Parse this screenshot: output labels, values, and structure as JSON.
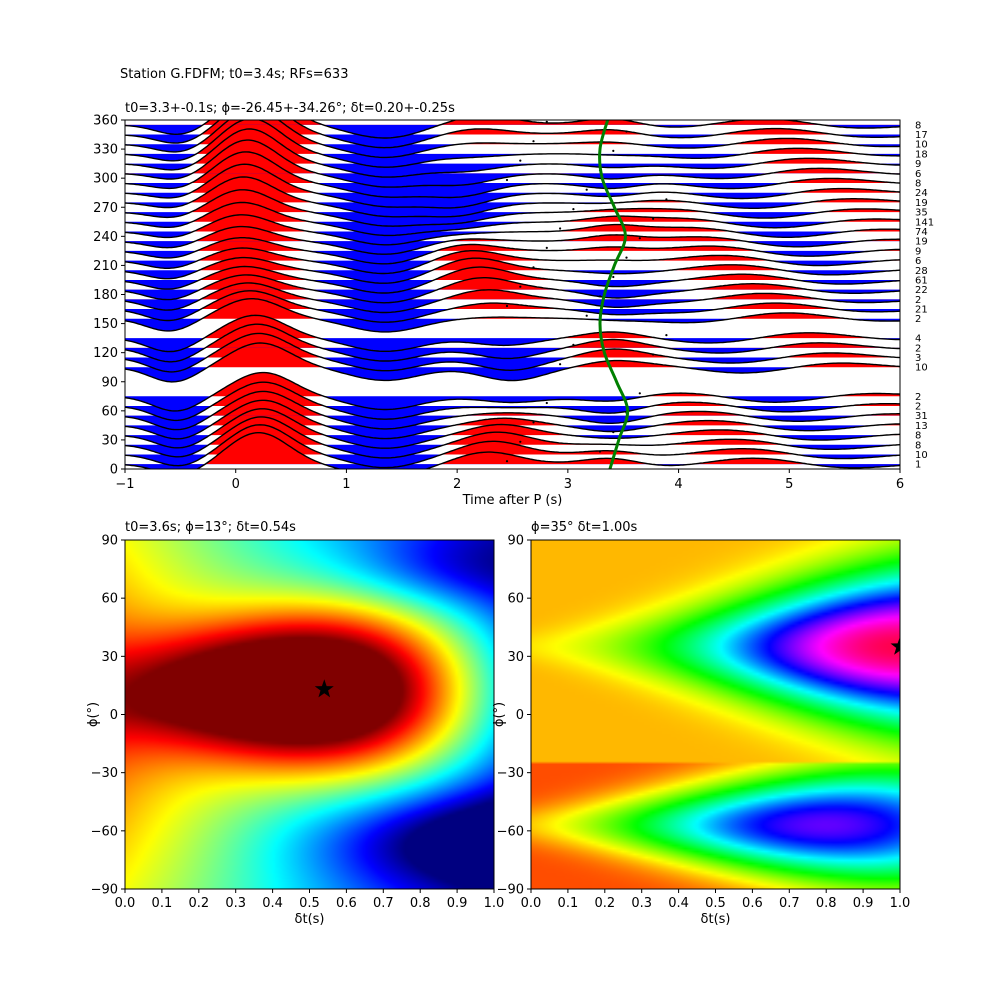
{
  "suptitle": "Station G.FDFM; t0=3.4s; RFs=633",
  "colors": {
    "positive_fill": "#ff0000",
    "negative_fill": "#0000ff",
    "trace_line": "#000000",
    "delay_curve": "#008000",
    "colormap_left": "jet",
    "colormap_right": "hsv"
  },
  "chart_data": [
    {
      "type": "line",
      "subtype": "receiver-function wiggle section stacked by back-azimuth",
      "title": "t0=3.3+-0.1s; ϕ=-26.45+-34.26°; δt=0.20+-0.25s",
      "xlabel": "Time after P (s)",
      "ylabel": "",
      "xlim": [
        -1,
        6
      ],
      "ylim": [
        0,
        360
      ],
      "xticks": [
        -1,
        0,
        1,
        2,
        3,
        4,
        5,
        6
      ],
      "yticks": [
        0,
        30,
        60,
        90,
        120,
        150,
        180,
        210,
        240,
        270,
        300,
        330,
        360
      ],
      "fill_positive": "red",
      "fill_negative": "blue",
      "traces": [
        {
          "baz": 5,
          "count": "1"
        },
        {
          "baz": 15,
          "count": "10"
        },
        {
          "baz": 25,
          "count": "8"
        },
        {
          "baz": 35,
          "count": "8"
        },
        {
          "baz": 45,
          "count": "13"
        },
        {
          "baz": 55,
          "count": "31"
        },
        {
          "baz": 65,
          "count": "2"
        },
        {
          "baz": 75,
          "count": "2"
        },
        {
          "baz": 105,
          "count": "10"
        },
        {
          "baz": 115,
          "count": "3"
        },
        {
          "baz": 125,
          "count": "2"
        },
        {
          "baz": 135,
          "count": "4"
        },
        {
          "baz": 155,
          "count": "2"
        },
        {
          "baz": 165,
          "count": "21"
        },
        {
          "baz": 175,
          "count": "2"
        },
        {
          "baz": 185,
          "count": "22"
        },
        {
          "baz": 195,
          "count": "61"
        },
        {
          "baz": 205,
          "count": "28"
        },
        {
          "baz": 215,
          "count": "6"
        },
        {
          "baz": 225,
          "count": "9"
        },
        {
          "baz": 235,
          "count": "19"
        },
        {
          "baz": 245,
          "count": "74"
        },
        {
          "baz": 255,
          "count": "141"
        },
        {
          "baz": 265,
          "count": "35"
        },
        {
          "baz": 275,
          "count": "19"
        },
        {
          "baz": 285,
          "count": "24"
        },
        {
          "baz": 295,
          "count": "8"
        },
        {
          "baz": 305,
          "count": "6"
        },
        {
          "baz": 315,
          "count": "9"
        },
        {
          "baz": 325,
          "count": "18"
        },
        {
          "baz": 335,
          "count": "10"
        },
        {
          "baz": 345,
          "count": "17"
        },
        {
          "baz": 355,
          "count": "8"
        }
      ],
      "delay_curve": {
        "color": "green",
        "points": [
          [
            3.38,
            0
          ],
          [
            3.46,
            30
          ],
          [
            3.54,
            60
          ],
          [
            3.44,
            90
          ],
          [
            3.33,
            120
          ],
          [
            3.29,
            150
          ],
          [
            3.33,
            180
          ],
          [
            3.42,
            210
          ],
          [
            3.52,
            240
          ],
          [
            3.42,
            270
          ],
          [
            3.31,
            300
          ],
          [
            3.29,
            330
          ],
          [
            3.36,
            360
          ]
        ]
      }
    },
    {
      "type": "heatmap",
      "title": "t0=3.6s; ϕ=13°; δt=0.54s",
      "xlabel": "δt(s)",
      "ylabel": "ϕ(°)",
      "xlim": [
        0,
        1
      ],
      "ylim": [
        -90,
        90
      ],
      "xticks": [
        "0.0",
        "0.1",
        "0.2",
        "0.3",
        "0.4",
        "0.5",
        "0.6",
        "0.7",
        "0.8",
        "0.9",
        "1.0"
      ],
      "yticks": [
        "−90",
        "−60",
        "−30",
        "0",
        "30",
        "60",
        "90"
      ],
      "colormap": "jet",
      "maximum": {
        "dt": 0.54,
        "phi": 13
      }
    },
    {
      "type": "heatmap",
      "title": "ϕ=35° δt=1.00s",
      "xlabel": "δt(s)",
      "ylabel": "ϕ(°)",
      "xlim": [
        0,
        1
      ],
      "ylim": [
        -90,
        90
      ],
      "xticks": [
        "0.0",
        "0.1",
        "0.2",
        "0.3",
        "0.4",
        "0.5",
        "0.6",
        "0.7",
        "0.8",
        "0.9",
        "1.0"
      ],
      "yticks": [
        "−90",
        "−60",
        "−30",
        "0",
        "30",
        "60",
        "90"
      ],
      "colormap": "hsv",
      "maximum": {
        "dt": 1.0,
        "phi": 35
      }
    }
  ]
}
